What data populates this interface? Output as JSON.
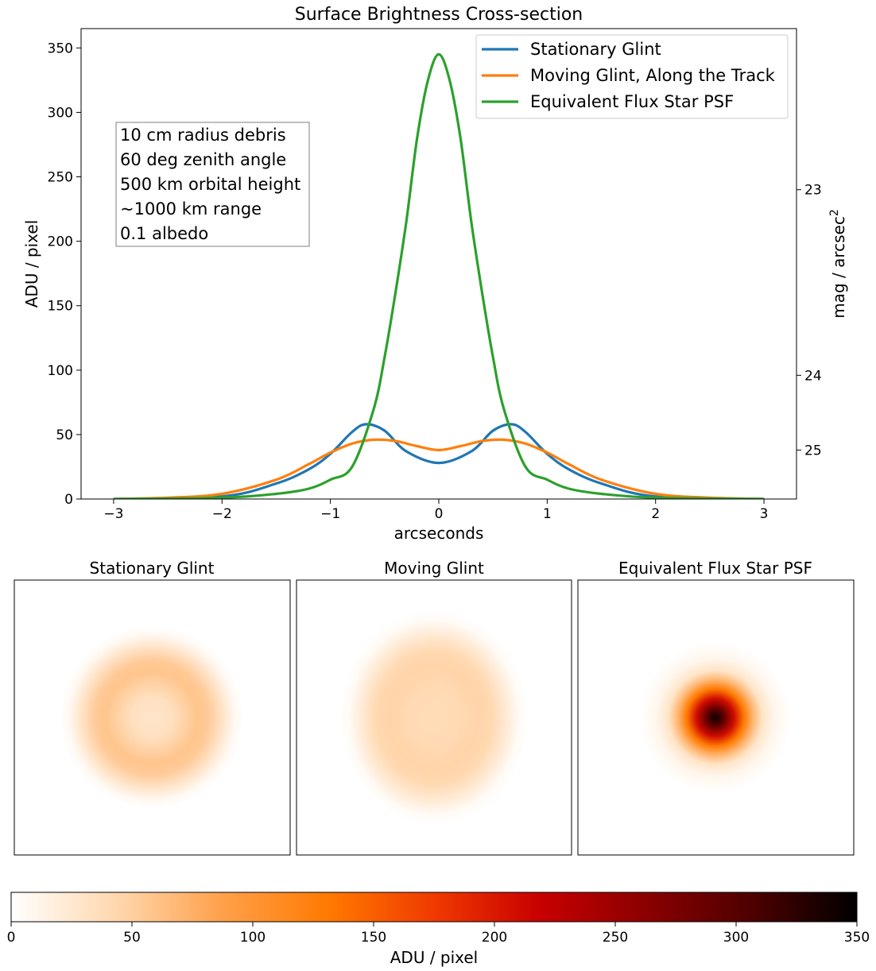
{
  "chart_data": [
    {
      "type": "line",
      "title": "Surface Brightness Cross-section",
      "xlabel": "arcseconds",
      "ylabel": "ADU / pixel",
      "ylabel_right": "mag / arcsec",
      "ylabel_right_sup": "2",
      "xlim": [
        -3.3,
        3.3
      ],
      "ylim": [
        0,
        365
      ],
      "xticks": [
        -3,
        -2,
        -1,
        0,
        1,
        2,
        3
      ],
      "xtick_labels": [
        "−3",
        "−2",
        "−1",
        "0",
        "1",
        "2",
        "3"
      ],
      "yticks": [
        0,
        50,
        100,
        150,
        200,
        250,
        300,
        350
      ],
      "ytick_labels": [
        "0",
        "50",
        "100",
        "150",
        "200",
        "250",
        "300",
        "350"
      ],
      "right_ticks": [
        {
          "label": "23",
          "adu": 240
        },
        {
          "label": "24",
          "adu": 96
        },
        {
          "label": "25",
          "adu": 38
        }
      ],
      "legend_position": "top-right",
      "grid": false,
      "annotation_lines": [
        "10 cm radius debris",
        "60 deg zenith angle",
        "500 km orbital height",
        "~1000 km range",
        "0.1 albedo"
      ],
      "series": [
        {
          "name": "Stationary Glint",
          "color": "#1f77b4",
          "x": [
            -3.0,
            -2.0,
            -1.5,
            -1.2,
            -1.0,
            -0.8,
            -0.67,
            -0.5,
            -0.3,
            0.0,
            0.3,
            0.5,
            0.67,
            0.8,
            1.0,
            1.2,
            1.5,
            2.0,
            3.0
          ],
          "y": [
            0,
            2,
            12,
            23,
            35,
            52,
            58,
            53,
            37,
            28,
            37,
            53,
            58,
            52,
            35,
            23,
            12,
            2,
            0
          ]
        },
        {
          "name": "Moving Glint, Along the Track",
          "color": "#ff7f0e",
          "x": [
            -3.0,
            -2.5,
            -2.0,
            -1.5,
            -1.2,
            -1.0,
            -0.8,
            -0.6,
            -0.4,
            -0.2,
            0.0,
            0.2,
            0.4,
            0.6,
            0.8,
            1.0,
            1.2,
            1.5,
            2.0,
            2.5,
            3.0
          ],
          "y": [
            0,
            1,
            4,
            15,
            27,
            36,
            43,
            46,
            45,
            41,
            38,
            41,
            45,
            46,
            43,
            36,
            27,
            15,
            4,
            1,
            0
          ]
        },
        {
          "name": "Equivalent Flux Star PSF",
          "color": "#2ca02c",
          "x": [
            -3.0,
            -2.0,
            -1.5,
            -1.2,
            -1.0,
            -0.8,
            -0.6,
            -0.5,
            -0.4,
            -0.3,
            -0.2,
            -0.1,
            0.0,
            0.1,
            0.2,
            0.3,
            0.4,
            0.5,
            0.6,
            0.8,
            1.0,
            1.2,
            1.5,
            2.0,
            3.0
          ],
          "y": [
            0,
            1,
            4,
            8,
            15,
            25,
            70,
            110,
            160,
            215,
            280,
            325,
            345,
            325,
            280,
            215,
            160,
            110,
            70,
            25,
            15,
            8,
            4,
            1,
            0
          ]
        }
      ]
    },
    {
      "type": "heatmap",
      "title": "Stationary Glint",
      "profile": "ring",
      "peak_adu": 58,
      "center_adu": 28
    },
    {
      "type": "heatmap",
      "title": "Moving Glint",
      "profile": "ring",
      "peak_adu": 46,
      "center_adu": 38
    },
    {
      "type": "heatmap",
      "title": "Equivalent Flux Star PSF",
      "profile": "gaussian",
      "peak_adu": 345
    }
  ],
  "colorbar": {
    "label": "ADU / pixel",
    "range": [
      0,
      350
    ],
    "ticks": [
      0,
      50,
      100,
      150,
      200,
      250,
      300,
      350
    ],
    "tick_labels": [
      "0",
      "50",
      "100",
      "150",
      "200",
      "250",
      "300",
      "350"
    ],
    "colormap": "gist_heat_r",
    "stops": [
      "#ffffff",
      "#ffd7ae",
      "#ffa04a",
      "#ff7a00",
      "#f03a00",
      "#c80000",
      "#8c0000",
      "#4e0000",
      "#000000"
    ]
  }
}
